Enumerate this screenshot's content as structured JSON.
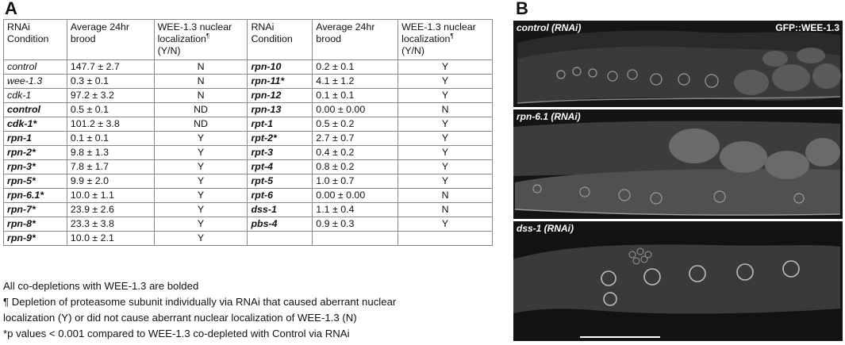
{
  "panel_a_label": "A",
  "panel_b_label": "B",
  "table": {
    "headers": {
      "condition_line1": "RNAi",
      "condition_line2": "Condition",
      "brood_line1": "Average 24hr",
      "brood_line2": "brood",
      "loc_line1": "WEE-1.3 nuclear",
      "loc_line2": "localization",
      "loc_mark": "¶",
      "loc_line3": "(Y/N)"
    },
    "left_rows": [
      {
        "condition": "control",
        "brood": "147.7 ± 2.7",
        "loc": "N",
        "bold": false
      },
      {
        "condition": "wee-1.3",
        "brood": "0.3 ± 0.1",
        "loc": "N",
        "bold": false
      },
      {
        "condition": "cdk-1",
        "brood": "97.2 ± 3.2",
        "loc": "N",
        "bold": false
      },
      {
        "condition": "control",
        "brood": "0.5 ± 0.1",
        "loc": "ND",
        "bold": true
      },
      {
        "condition": "cdk-1*",
        "brood": "101.2 ± 3.8",
        "loc": "ND",
        "bold": true
      },
      {
        "condition": "rpn-1",
        "brood": "0.1 ± 0.1",
        "loc": "Y",
        "bold": true
      },
      {
        "condition": "rpn-2*",
        "brood": "9.8 ± 1.3",
        "loc": "Y",
        "bold": true
      },
      {
        "condition": "rpn-3*",
        "brood": "7.8 ± 1.7",
        "loc": "Y",
        "bold": true
      },
      {
        "condition": "rpn-5*",
        "brood": "9.9 ± 2.0",
        "loc": "Y",
        "bold": true
      },
      {
        "condition": "rpn-6.1*",
        "brood": "10.0 ± 1.1",
        "loc": "Y",
        "bold": true
      },
      {
        "condition": "rpn-7*",
        "brood": "23.9 ± 2.6",
        "loc": "Y",
        "bold": true
      },
      {
        "condition": "rpn-8*",
        "brood": "23.3 ± 3.8",
        "loc": "Y",
        "bold": true
      },
      {
        "condition": "rpn-9*",
        "brood": "10.0 ± 2.1",
        "loc": "Y",
        "bold": true
      }
    ],
    "right_rows": [
      {
        "condition": "rpn-10",
        "brood": "0.2 ± 0.1",
        "loc": "Y"
      },
      {
        "condition": "rpn-11*",
        "brood": "4.1 ± 1.2",
        "loc": "Y"
      },
      {
        "condition": "rpn-12",
        "brood": "0.1 ± 0.1",
        "loc": "Y"
      },
      {
        "condition": "rpn-13",
        "brood": "0.00 ± 0.00",
        "loc": "N"
      },
      {
        "condition": "rpt-1",
        "brood": "0.5 ± 0.2",
        "loc": "Y"
      },
      {
        "condition": "rpt-2*",
        "brood": "2.7 ± 0.7",
        "loc": "Y"
      },
      {
        "condition": "rpt-3",
        "brood": "0.4 ± 0.2",
        "loc": "Y"
      },
      {
        "condition": "rpt-4",
        "brood": "0.8 ± 0.2",
        "loc": "Y"
      },
      {
        "condition": "rpt-5",
        "brood": "1.0 ± 0.7",
        "loc": "Y"
      },
      {
        "condition": "rpt-6",
        "brood": "0.00 ± 0.00",
        "loc": "N"
      },
      {
        "condition": "dss-1",
        "brood": "1.1 ± 0.4",
        "loc": "N"
      },
      {
        "condition": "pbs-4",
        "brood": "0.9 ± 0.3",
        "loc": "Y"
      },
      {
        "condition": "",
        "brood": "",
        "loc": ""
      }
    ]
  },
  "footnotes": {
    "line1": "All co-depletions with WEE-1.3 are bolded",
    "line2": "¶ Depletion of proteasome subunit individually via RNAi that caused aberrant nuclear",
    "line3": "localization (Y) or did not cause aberrant nuclear localization of WEE-1.3 (N)",
    "line4": "*p values < 0.001 compared to WEE-1.3 co-depleted with Control via RNAi"
  },
  "images": {
    "panel1_label": "control (RNAi)",
    "panel1_marker": "GFP::WEE-1.3",
    "panel2_label": "rpn-6.1 (RNAi)",
    "panel3_label": "dss-1 (RNAi)"
  }
}
